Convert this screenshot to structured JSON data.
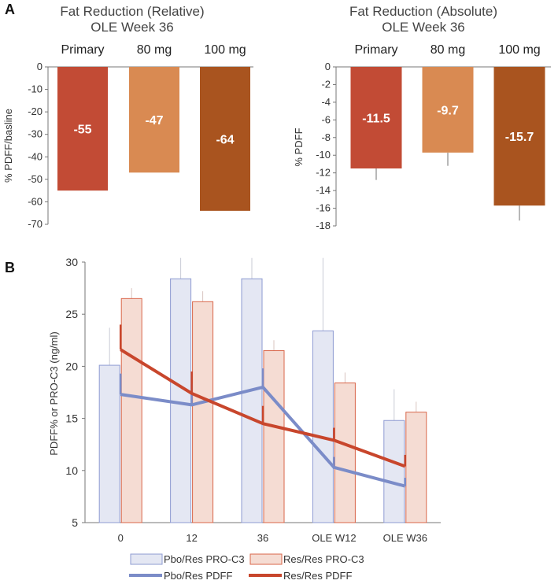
{
  "figure": {
    "panel_a_letter": "A",
    "panel_b_letter": "B"
  },
  "colors": {
    "primary": "#c24b35",
    "mg80": "#d98a52",
    "mg100": "#a9541f",
    "pbo_bar_fill": "#e4e7f3",
    "pbo_bar_stroke": "#8e9bd2",
    "res_bar_fill": "#f5dcd3",
    "res_bar_stroke": "#d9664a",
    "pbo_line": "#7b8cc8",
    "res_line": "#c8462c",
    "axis": "#777777",
    "error": "#888888"
  },
  "chart_data": [
    {
      "id": "relative",
      "type": "bar",
      "title_line1": "Fat Reduction (Relative)",
      "title_line2": "OLE Week 36",
      "categories": [
        "Primary",
        "80 mg",
        "100 mg"
      ],
      "values": [
        -55,
        -47,
        -64
      ],
      "value_labels": [
        "-55",
        "-47",
        "-64"
      ],
      "errors": [
        0,
        0,
        0
      ],
      "ylabel": "% PDFF/basline",
      "ylim": [
        -70,
        0
      ],
      "yticks": [
        0,
        -10,
        -20,
        -30,
        -40,
        -50,
        -60,
        -70
      ]
    },
    {
      "id": "absolute",
      "type": "bar",
      "title_line1": "Fat Reduction (Absolute)",
      "title_line2": "OLE Week 36",
      "categories": [
        "Primary",
        "80 mg",
        "100 mg"
      ],
      "values": [
        -11.5,
        -9.7,
        -15.7
      ],
      "value_labels": [
        "-11.5",
        "-9.7",
        "-15.7"
      ],
      "errors": [
        1.3,
        1.5,
        1.7
      ],
      "ylabel": "% PDFF",
      "ylim": [
        -18,
        0
      ],
      "yticks": [
        0,
        -2,
        -4,
        -6,
        -8,
        -10,
        -12,
        -14,
        -16,
        -18
      ]
    },
    {
      "id": "timecourse",
      "type": "bar+line",
      "ylabel": "PDFF% or PRO-C3 (ng/ml)",
      "categories": [
        "0",
        "12",
        "36",
        "OLE W12",
        "OLE W36"
      ],
      "ylim": [
        5,
        30
      ],
      "yticks": [
        5,
        10,
        15,
        20,
        25,
        30
      ],
      "bar_series": [
        {
          "name": "Pbo/Res PRO-C3",
          "values": [
            20.1,
            28.4,
            28.4,
            23.4,
            14.8
          ],
          "errors": [
            3.6,
            2.0,
            2.0,
            7.0,
            3.0
          ]
        },
        {
          "name": "Res/Res PRO-C3",
          "values": [
            26.5,
            26.2,
            21.5,
            18.4,
            15.6
          ],
          "errors": [
            1.0,
            1.0,
            1.0,
            1.0,
            1.0
          ]
        }
      ],
      "line_series": [
        {
          "name": "Pbo/Res PDFF",
          "values": [
            17.3,
            16.3,
            18.0,
            10.3,
            8.5
          ],
          "errors": [
            2.0,
            2.0,
            1.8,
            1.0,
            0.8
          ]
        },
        {
          "name": "Res/Res PDFF",
          "values": [
            21.6,
            17.4,
            14.5,
            12.9,
            10.4
          ],
          "errors": [
            2.4,
            2.1,
            1.7,
            1.2,
            1.1
          ]
        }
      ]
    }
  ]
}
